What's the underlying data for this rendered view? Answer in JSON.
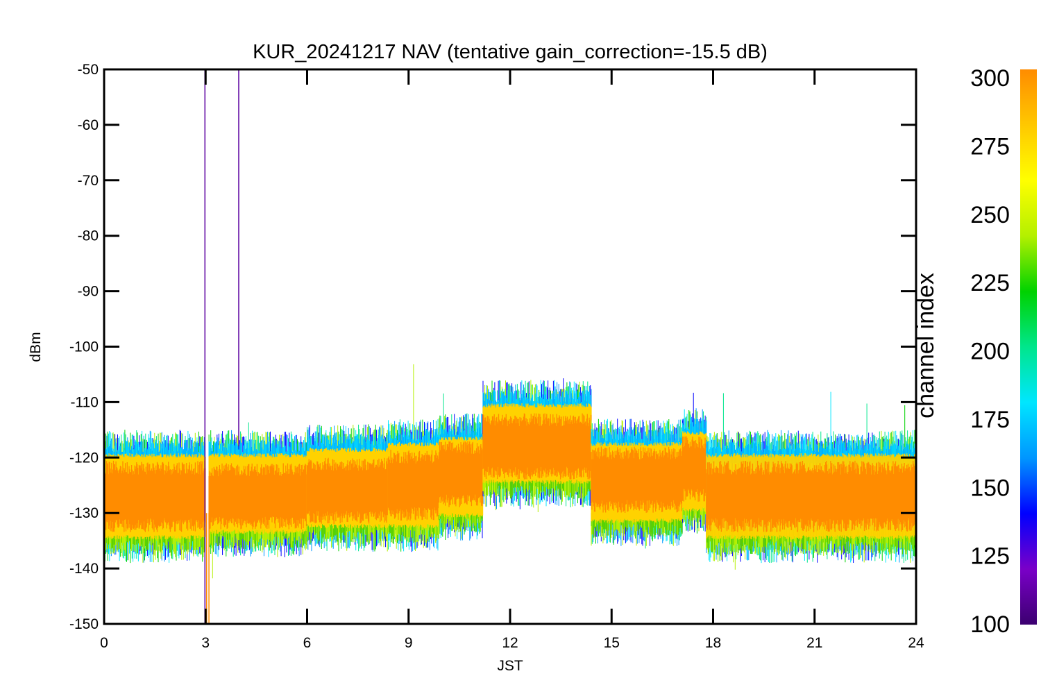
{
  "chart_data": {
    "type": "line",
    "title": "KUR_20241217 NAV (tentative gain_correction=-15.5 dB)",
    "xlabel": "JST",
    "ylabel": "dBm",
    "xlim": [
      0,
      24
    ],
    "ylim": [
      -150,
      -50
    ],
    "xticks": [
      "0",
      "3",
      "6",
      "9",
      "12",
      "15",
      "18",
      "21",
      "24"
    ],
    "yticks": [
      "-50",
      "-60",
      "-70",
      "-80",
      "-90",
      "-100",
      "-110",
      "-120",
      "-130",
      "-140",
      "-150"
    ],
    "grid": false,
    "colorbar": {
      "label": "channel index",
      "ticks": [
        "300",
        "275",
        "250",
        "225",
        "200",
        "175",
        "150",
        "125",
        "100"
      ],
      "range": [
        100,
        300
      ],
      "colormap": [
        "#3b0070",
        "#7a00c8",
        "#0000ff",
        "#0096ff",
        "#00e6ff",
        "#00e68c",
        "#00d200",
        "#b4f000",
        "#ffff00",
        "#ffc800",
        "#ff8c00"
      ]
    },
    "segments": [
      {
        "x_start": 0.0,
        "x_end": 3.0,
        "center": -127,
        "upper": -120,
        "lower": -134,
        "peak_high": -116,
        "peak_low": -138
      },
      {
        "x_start": 3.1,
        "x_end": 6.0,
        "center": -127,
        "upper": -120,
        "lower": -133,
        "peak_high": -116,
        "peak_low": -141
      },
      {
        "x_start": 6.0,
        "x_end": 8.4,
        "center": -126,
        "upper": -119,
        "lower": -132,
        "peak_high": -106,
        "peak_low": -137
      },
      {
        "x_start": 8.4,
        "x_end": 9.9,
        "center": -125,
        "upper": -118,
        "lower": -132,
        "peak_high": -105,
        "peak_low": -136
      },
      {
        "x_start": 9.9,
        "x_end": 11.2,
        "center": -123,
        "upper": -117,
        "lower": -130,
        "peak_high": -112,
        "peak_low": -134
      },
      {
        "x_start": 11.2,
        "x_end": 14.4,
        "center": -118,
        "upper": -111,
        "lower": -124,
        "peak_high": -108,
        "peak_low": -129
      },
      {
        "x_start": 14.4,
        "x_end": 17.1,
        "center": -124,
        "upper": -118,
        "lower": -131,
        "peak_high": -112,
        "peak_low": -136
      },
      {
        "x_start": 17.1,
        "x_end": 17.8,
        "center": -122,
        "upper": -116,
        "lower": -129,
        "peak_high": -111,
        "peak_low": -133
      },
      {
        "x_start": 17.8,
        "x_end": 24.0,
        "center": -127,
        "upper": -120,
        "lower": -134,
        "peak_high": -111,
        "peak_low": -140
      }
    ],
    "spikes": [
      {
        "x": 2.98,
        "y_top": -50,
        "y_bottom": -150,
        "color": "#5a00a0"
      },
      {
        "x": 3.03,
        "y_top": -130,
        "y_bottom": -150,
        "color": "#ff8c00"
      },
      {
        "x": 3.1,
        "y_top": -130,
        "y_bottom": -150,
        "color": "#ff8c00"
      },
      {
        "x": 3.98,
        "y_top": -50,
        "y_bottom": -118,
        "color": "#5a00a0"
      }
    ],
    "gap": {
      "x_start": 3.0,
      "x_end": 3.1
    }
  }
}
